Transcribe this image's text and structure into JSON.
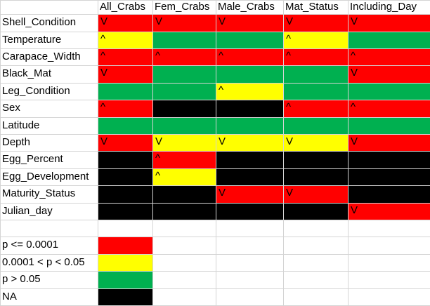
{
  "colors": {
    "red": "#ff0000",
    "yellow": "#ffff00",
    "green": "#00b050",
    "black": "#000000",
    "none": "#ffffff"
  },
  "columns": [
    "All_Crabs",
    "Fem_Crabs",
    "Male_Crabs",
    "Mat_Status",
    "Including_Day"
  ],
  "rows": [
    {
      "label": "Shell_Condition",
      "cells": [
        {
          "color": "red",
          "mark": "V"
        },
        {
          "color": "red",
          "mark": "V"
        },
        {
          "color": "red",
          "mark": "V"
        },
        {
          "color": "red",
          "mark": "V"
        },
        {
          "color": "red",
          "mark": "V"
        }
      ]
    },
    {
      "label": "Temperature",
      "cells": [
        {
          "color": "yellow",
          "mark": "^"
        },
        {
          "color": "green",
          "mark": ""
        },
        {
          "color": "green",
          "mark": ""
        },
        {
          "color": "yellow",
          "mark": "^"
        },
        {
          "color": "green",
          "mark": ""
        }
      ]
    },
    {
      "label": "Carapace_Width",
      "cells": [
        {
          "color": "red",
          "mark": "^"
        },
        {
          "color": "red",
          "mark": "^"
        },
        {
          "color": "red",
          "mark": "^"
        },
        {
          "color": "red",
          "mark": "^"
        },
        {
          "color": "red",
          "mark": "^"
        }
      ]
    },
    {
      "label": "Black_Mat",
      "cells": [
        {
          "color": "red",
          "mark": "V"
        },
        {
          "color": "green",
          "mark": ""
        },
        {
          "color": "green",
          "mark": ""
        },
        {
          "color": "green",
          "mark": ""
        },
        {
          "color": "red",
          "mark": "V"
        }
      ]
    },
    {
      "label": "Leg_Condition",
      "cells": [
        {
          "color": "green",
          "mark": ""
        },
        {
          "color": "green",
          "mark": ""
        },
        {
          "color": "yellow",
          "mark": "^"
        },
        {
          "color": "green",
          "mark": ""
        },
        {
          "color": "green",
          "mark": ""
        }
      ]
    },
    {
      "label": "Sex",
      "cells": [
        {
          "color": "red",
          "mark": "^"
        },
        {
          "color": "black",
          "mark": ""
        },
        {
          "color": "black",
          "mark": ""
        },
        {
          "color": "red",
          "mark": "^"
        },
        {
          "color": "red",
          "mark": "^"
        }
      ]
    },
    {
      "label": "Latitude",
      "cells": [
        {
          "color": "green",
          "mark": ""
        },
        {
          "color": "green",
          "mark": ""
        },
        {
          "color": "green",
          "mark": ""
        },
        {
          "color": "green",
          "mark": ""
        },
        {
          "color": "green",
          "mark": ""
        }
      ]
    },
    {
      "label": "Depth",
      "cells": [
        {
          "color": "red",
          "mark": "V"
        },
        {
          "color": "yellow",
          "mark": "V"
        },
        {
          "color": "yellow",
          "mark": "V"
        },
        {
          "color": "yellow",
          "mark": "V"
        },
        {
          "color": "red",
          "mark": "V"
        }
      ]
    },
    {
      "label": "Egg_Percent",
      "cells": [
        {
          "color": "black",
          "mark": ""
        },
        {
          "color": "red",
          "mark": "^"
        },
        {
          "color": "black",
          "mark": ""
        },
        {
          "color": "black",
          "mark": ""
        },
        {
          "color": "black",
          "mark": ""
        }
      ]
    },
    {
      "label": "Egg_Development",
      "cells": [
        {
          "color": "black",
          "mark": ""
        },
        {
          "color": "yellow",
          "mark": "^"
        },
        {
          "color": "black",
          "mark": ""
        },
        {
          "color": "black",
          "mark": ""
        },
        {
          "color": "black",
          "mark": ""
        }
      ]
    },
    {
      "label": "Maturity_Status",
      "cells": [
        {
          "color": "black",
          "mark": ""
        },
        {
          "color": "black",
          "mark": ""
        },
        {
          "color": "red",
          "mark": "V"
        },
        {
          "color": "red",
          "mark": "V"
        },
        {
          "color": "black",
          "mark": ""
        }
      ]
    },
    {
      "label": "Julian_day",
      "cells": [
        {
          "color": "black",
          "mark": ""
        },
        {
          "color": "black",
          "mark": ""
        },
        {
          "color": "black",
          "mark": ""
        },
        {
          "color": "black",
          "mark": ""
        },
        {
          "color": "red",
          "mark": "V"
        }
      ]
    }
  ],
  "legend": [
    {
      "label": "p <= 0.0001",
      "color": "red"
    },
    {
      "label": "0.0001 < p < 0.05",
      "color": "yellow"
    },
    {
      "label": "p > 0.05",
      "color": "green"
    },
    {
      "label": "NA",
      "color": "black"
    }
  ]
}
